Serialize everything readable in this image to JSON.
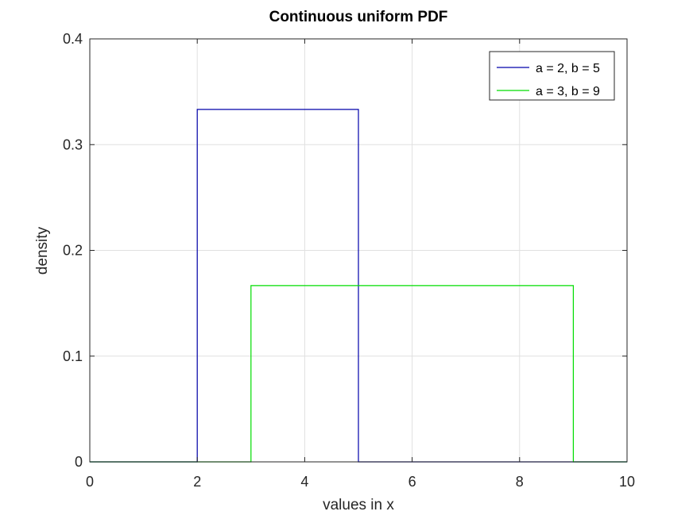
{
  "chart_data": {
    "type": "line",
    "title": "Continuous uniform PDF",
    "xlabel": "values in x",
    "ylabel": "density",
    "xlim": [
      0,
      10
    ],
    "ylim": [
      0,
      0.4
    ],
    "xticks": [
      0,
      2,
      4,
      6,
      8,
      10
    ],
    "xtick_labels": [
      "0",
      "2",
      "4",
      "6",
      "8",
      "10"
    ],
    "yticks": [
      0,
      0.1,
      0.2,
      0.3,
      0.4
    ],
    "ytick_labels": [
      "0",
      "0.1",
      "0.2",
      "0.3",
      "0.4"
    ],
    "grid": true,
    "legend_position": "top-right",
    "series": [
      {
        "name": "a = 2, b = 5",
        "color": "#0000aa",
        "x": [
          0,
          2,
          2,
          5,
          5,
          10
        ],
        "y": [
          0,
          0,
          0.3333,
          0.3333,
          0,
          0
        ]
      },
      {
        "name": "a = 3, b = 9",
        "color": "#00dd00",
        "x": [
          0,
          3,
          3,
          9,
          9,
          10
        ],
        "y": [
          0,
          0,
          0.1667,
          0.1667,
          0,
          0
        ]
      }
    ]
  }
}
